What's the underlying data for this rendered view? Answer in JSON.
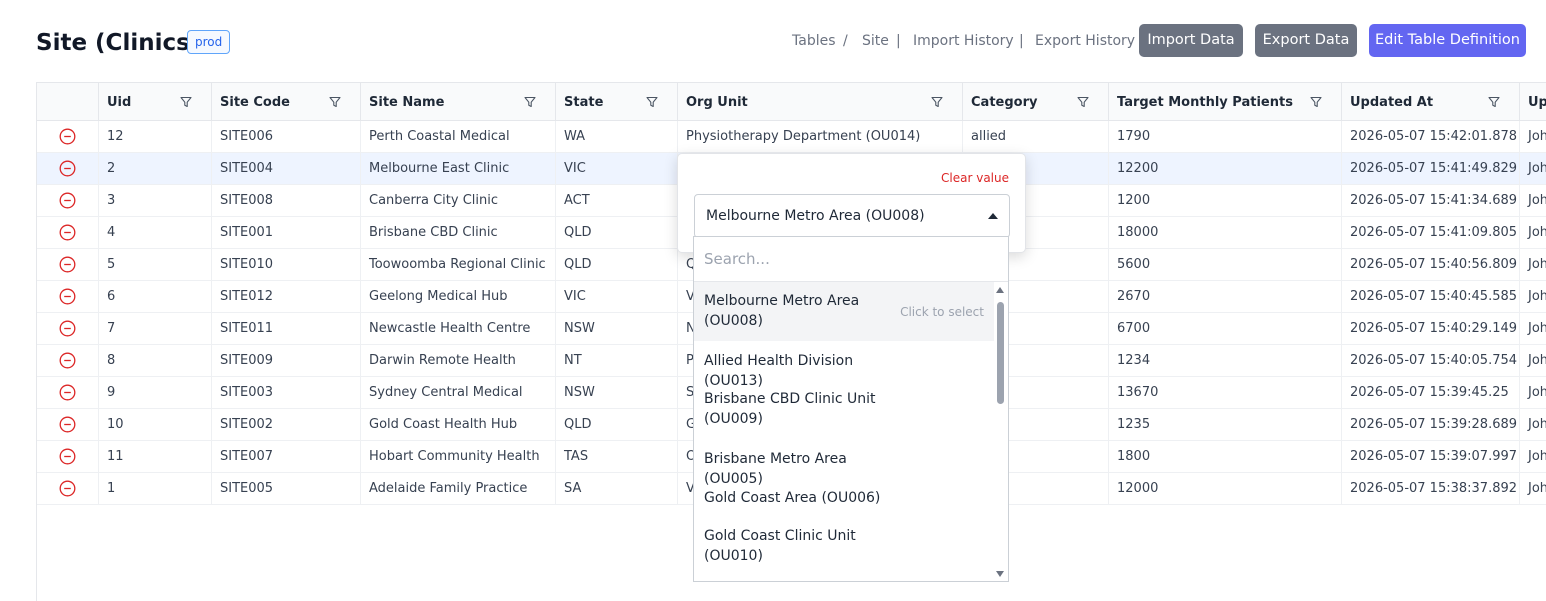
{
  "header": {
    "title": "Site (Clinics)",
    "env_badge": "prod",
    "nav": [
      {
        "label": "Tables",
        "active": false
      },
      {
        "label": "Site",
        "active": true
      },
      {
        "label": "Import History",
        "active": false
      },
      {
        "label": "Export History",
        "active": false
      }
    ],
    "nav_separators": [
      "/",
      "|",
      "|"
    ],
    "buttons": {
      "import": "Import Data",
      "export": "Export Data",
      "edit": "Edit Table Definition"
    }
  },
  "colors": {
    "primary": "#6366f1",
    "secondary_button": "#6b7280",
    "active_link": "#3b82f6",
    "delete": "#dc2626",
    "selected_row": "#eef4ff"
  },
  "table": {
    "columns": [
      "Uid",
      "Site Code",
      "Site Name",
      "State",
      "Org Unit",
      "Category",
      "Target Monthly Patients",
      "Updated At",
      "Upd"
    ],
    "rows": [
      {
        "uid": "12",
        "site_code": "SITE006",
        "site_name": "Perth Coastal Medical",
        "state": "WA",
        "org_unit": "Physiotherapy Department (OU014)",
        "category": "allied",
        "target": "1790",
        "updated_at": "2026-05-07 15:42:01.878",
        "updated_by": "Joh"
      },
      {
        "uid": "2",
        "site_code": "SITE004",
        "site_name": "Melbourne East Clinic",
        "state": "VIC",
        "org_unit": "",
        "category": "",
        "target": "12200",
        "updated_at": "2026-05-07 15:41:49.829",
        "updated_by": "Joh"
      },
      {
        "uid": "3",
        "site_code": "SITE008",
        "site_name": "Canberra City Clinic",
        "state": "ACT",
        "org_unit": "",
        "category": "",
        "target": "1200",
        "updated_at": "2026-05-07 15:41:34.689",
        "updated_by": "Joh"
      },
      {
        "uid": "4",
        "site_code": "SITE001",
        "site_name": "Brisbane CBD Clinic",
        "state": "QLD",
        "org_unit": "",
        "category": "",
        "target": "18000",
        "updated_at": "2026-05-07 15:41:09.805",
        "updated_by": "Joh"
      },
      {
        "uid": "5",
        "site_code": "SITE010",
        "site_name": "Toowoomba Regional Clinic",
        "state": "QLD",
        "org_unit": "Q",
        "category": "y",
        "target": "5600",
        "updated_at": "2026-05-07 15:40:56.809",
        "updated_by": "Joh"
      },
      {
        "uid": "6",
        "site_code": "SITE012",
        "site_name": "Geelong Medical Hub",
        "state": "VIC",
        "org_unit": "V",
        "category": "y",
        "target": "2670",
        "updated_at": "2026-05-07 15:40:45.585",
        "updated_by": "Joh"
      },
      {
        "uid": "7",
        "site_code": "SITE011",
        "site_name": "Newcastle Health Centre",
        "state": "NSW",
        "org_unit": "N",
        "category": "y",
        "target": "6700",
        "updated_at": "2026-05-07 15:40:29.149",
        "updated_by": "Joh"
      },
      {
        "uid": "8",
        "site_code": "SITE009",
        "site_name": "Darwin Remote Health",
        "state": "NT",
        "org_unit": "Pl",
        "category": "",
        "target": "1234",
        "updated_at": "2026-05-07 15:40:05.754",
        "updated_by": "Joh"
      },
      {
        "uid": "9",
        "site_code": "SITE003",
        "site_name": "Sydney Central Medical",
        "state": "NSW",
        "org_unit": "Sy",
        "category": "y",
        "target": "13670",
        "updated_at": "2026-05-07 15:39:45.25",
        "updated_by": "Joh"
      },
      {
        "uid": "10",
        "site_code": "SITE002",
        "site_name": "Gold Coast Health Hub",
        "state": "QLD",
        "org_unit": "G",
        "category": "unity",
        "target": "1235",
        "updated_at": "2026-05-07 15:39:28.689",
        "updated_by": "Joh"
      },
      {
        "uid": "11",
        "site_code": "SITE007",
        "site_name": "Hobart Community Health",
        "state": "TAS",
        "org_unit": "O",
        "category": "",
        "target": "1800",
        "updated_at": "2026-05-07 15:39:07.997",
        "updated_by": "Joh"
      },
      {
        "uid": "1",
        "site_code": "SITE005",
        "site_name": "Adelaide Family Practice",
        "state": "SA",
        "org_unit": "V",
        "category": "y",
        "target": "12000",
        "updated_at": "2026-05-07 15:38:37.892",
        "updated_by": "Joh"
      }
    ]
  },
  "editor": {
    "clear_label": "Clear value",
    "selected_value": "Melbourne Metro Area (OU008)",
    "search_placeholder": "Search...",
    "options": [
      {
        "label": "Melbourne Metro Area (OU008)",
        "hint": "Click to select",
        "highlighted": true
      },
      {
        "label": "Allied Health Division (OU013)",
        "hint": "",
        "highlighted": false
      },
      {
        "label": "Brisbane CBD Clinic Unit (OU009)",
        "hint": "",
        "highlighted": false
      },
      {
        "label": "Brisbane Metro Area (OU005)",
        "hint": "",
        "highlighted": false
      },
      {
        "label": "Gold Coast Area (OU006)",
        "hint": "",
        "highlighted": false
      },
      {
        "label": "Gold Coast Clinic Unit (OU010)",
        "hint": "",
        "highlighted": false
      }
    ]
  }
}
